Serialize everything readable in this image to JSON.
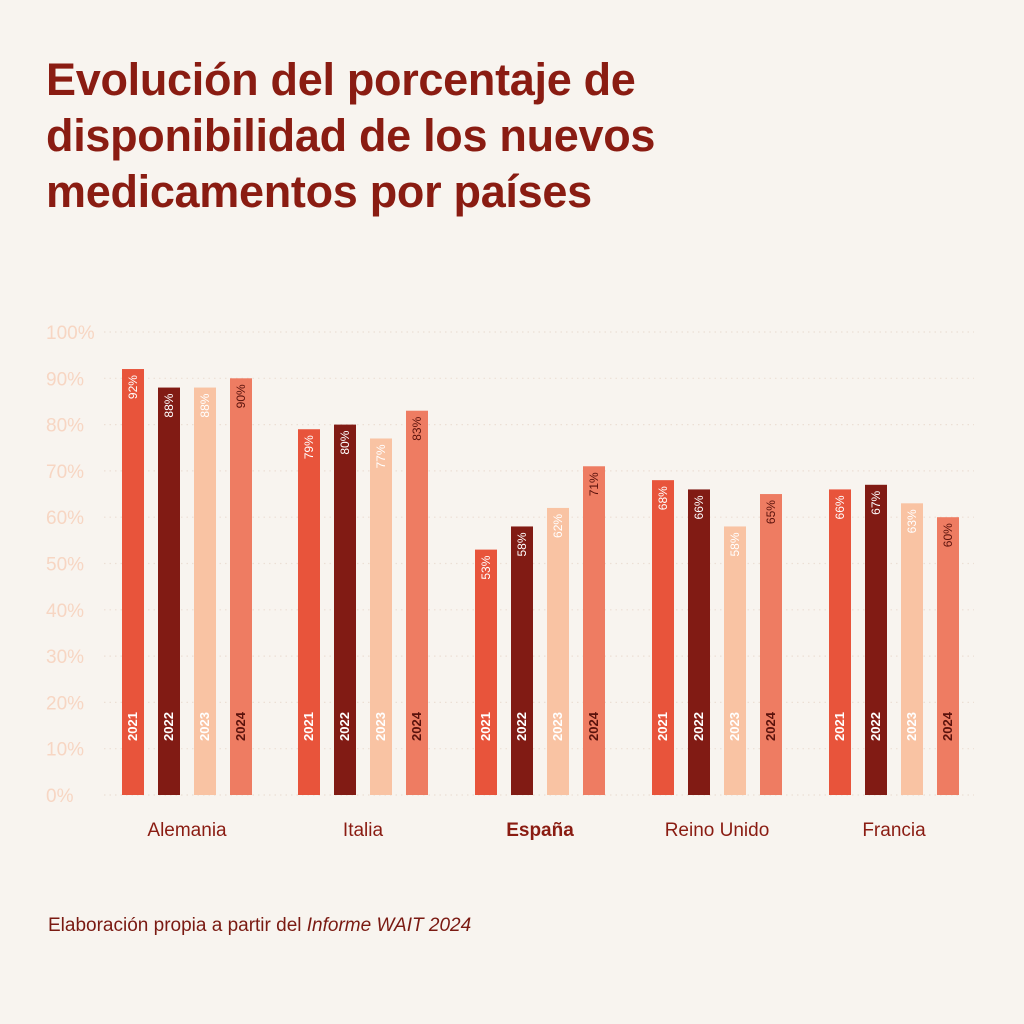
{
  "title": "Evolución del porcentaje de disponibilidad de los nuevos medicamentos por países",
  "source": {
    "prefix": "Elaboración propia a partir del ",
    "emphasis": "Informe WAIT 2024"
  },
  "colors": {
    "background": "#f8f4ef",
    "title": "#8a1c12",
    "axis_text": "#f7d6c3",
    "grid": "#ecdfd5",
    "category_text": "#8a1c12"
  },
  "chart_data": {
    "type": "bar",
    "categories": [
      "Alemania",
      "Italia",
      "España",
      "Reino Unido",
      "Francia"
    ],
    "highlight_category": "España",
    "series": [
      {
        "name": "2021",
        "color": "#e8543b",
        "label_color": "#ffffff",
        "values": [
          92,
          79,
          53,
          68,
          66
        ]
      },
      {
        "name": "2022",
        "color": "#811b14",
        "label_color": "#ffffff",
        "values": [
          88,
          80,
          58,
          66,
          67
        ]
      },
      {
        "name": "2023",
        "color": "#f9c3a3",
        "label_color": "#ffffff",
        "values": [
          88,
          77,
          62,
          58,
          63
        ]
      },
      {
        "name": "2024",
        "color": "#ee7c62",
        "label_color": "#5a120c",
        "values": [
          90,
          83,
          71,
          65,
          60
        ]
      }
    ],
    "value_suffix": "%",
    "yticks": [
      "0%",
      "10%",
      "20%",
      "30%",
      "40%",
      "50%",
      "60%",
      "70%",
      "80%",
      "90%",
      "100%"
    ],
    "ylim": [
      0,
      100
    ],
    "grid": true,
    "xlabel": "",
    "ylabel": ""
  }
}
